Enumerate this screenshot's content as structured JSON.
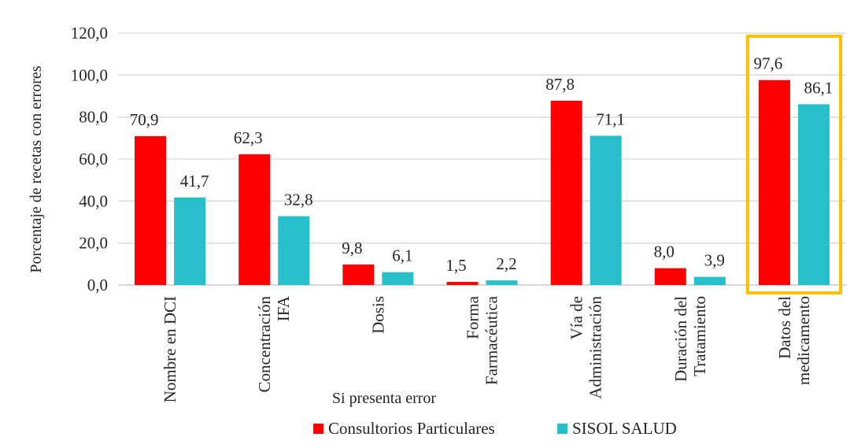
{
  "chart_data": {
    "type": "bar",
    "xlabel": "Si presenta error",
    "ylabel": "Porcentaje de recetas con errores",
    "ylim": [
      0,
      120
    ],
    "yticks": [
      "0,0",
      "20,0",
      "40,0",
      "60,0",
      "80,0",
      "100,0",
      "120,0"
    ],
    "grid": true,
    "legend_position": "bottom",
    "categories": [
      [
        "Nombre en DCI"
      ],
      [
        "Concentración",
        "IFA"
      ],
      [
        "Dosis"
      ],
      [
        "Forma",
        "Farmacéutica"
      ],
      [
        "Vía de",
        "Administración"
      ],
      [
        "Duración del",
        "Tratamiento"
      ],
      [
        "Datos del",
        "medicamento"
      ]
    ],
    "series": [
      {
        "name": "Consultorios Particulares",
        "color": "#ff0000",
        "values": [
          70.9,
          62.3,
          9.8,
          1.5,
          87.8,
          8.0,
          97.6
        ],
        "labels": [
          "70,9",
          "62,3",
          "9,8",
          "1,5",
          "87,8",
          "8,0",
          "97,6"
        ]
      },
      {
        "name": "SISOL SALUD",
        "color": "#27bfc9",
        "values": [
          41.7,
          32.8,
          6.1,
          2.2,
          71.1,
          3.9,
          86.1
        ],
        "labels": [
          "41,7",
          "32,8",
          "6,1",
          "2,2",
          "71,1",
          "3,9",
          "86,1"
        ]
      }
    ],
    "highlight_category_index": 6,
    "highlight_color": "#ffc000",
    "grid_color": "#d9d9d9",
    "axis_color": "#bfbfbf"
  }
}
